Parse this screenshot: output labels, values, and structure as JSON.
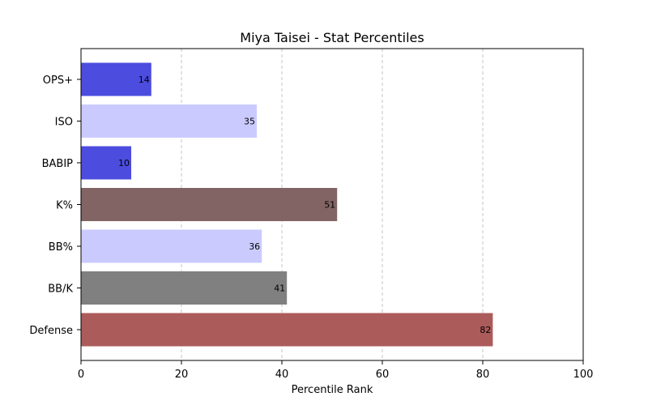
{
  "chart_data": {
    "type": "bar",
    "orientation": "horizontal",
    "title": "Miya Taisei - Stat Percentiles",
    "xlabel": "Percentile Rank",
    "ylabel": "",
    "xlim": [
      0,
      100
    ],
    "xticks": [
      0,
      20,
      40,
      60,
      80,
      100
    ],
    "grid": "x-dashed",
    "categories": [
      "OPS+",
      "ISO",
      "BABIP",
      "K%",
      "BB%",
      "BB/K",
      "Defense"
    ],
    "values": [
      14,
      35,
      10,
      51,
      36,
      41,
      82
    ],
    "colors": [
      "#4c4cdf",
      "#cbcaff",
      "#4c4cdf",
      "#826464",
      "#cbcaff",
      "#808080",
      "#ac5b5b"
    ],
    "data_labels": [
      "14",
      "35",
      "10",
      "51",
      "36",
      "41",
      "82"
    ]
  }
}
